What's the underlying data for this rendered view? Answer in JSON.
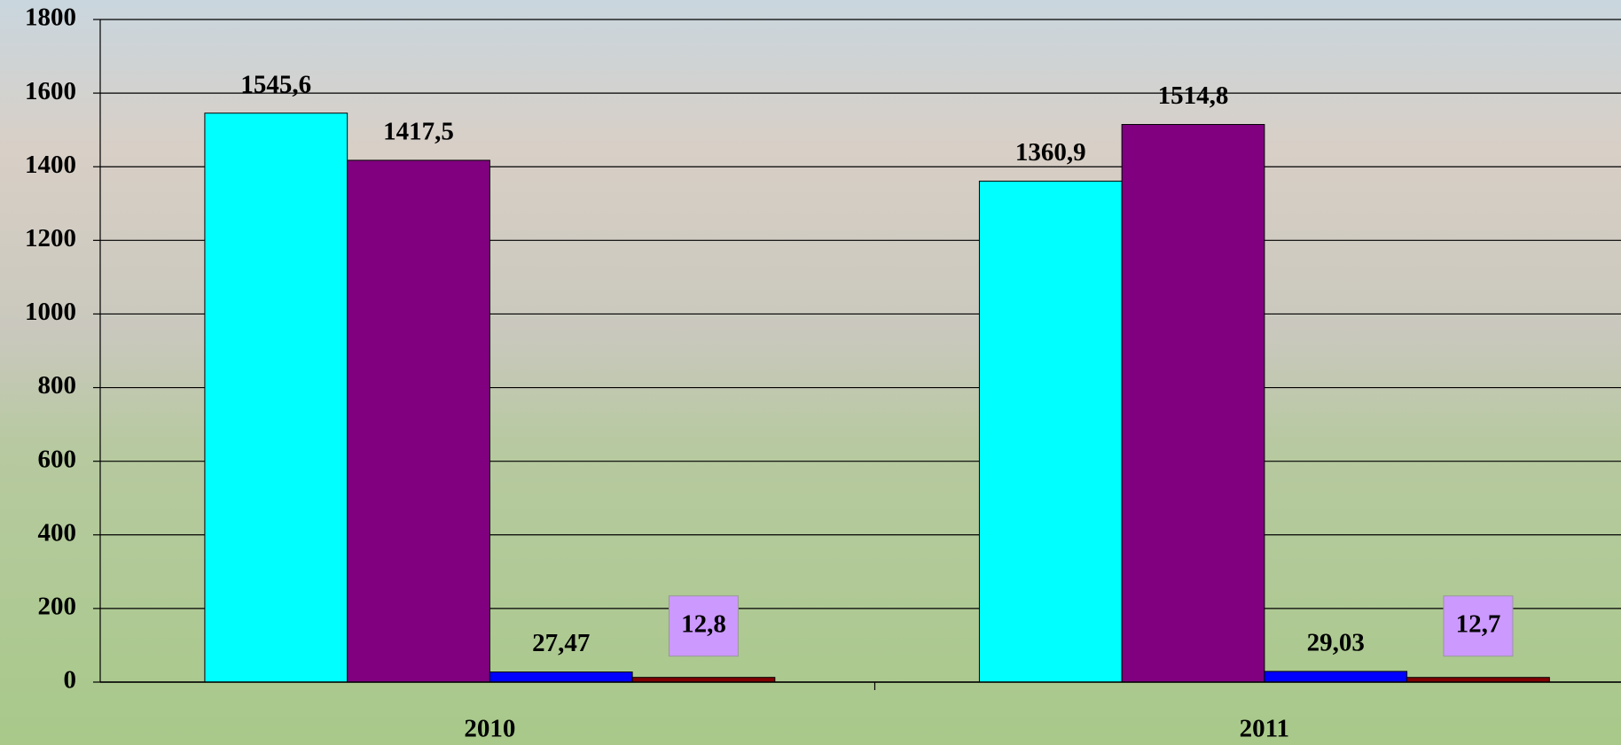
{
  "chart_data": {
    "type": "bar",
    "categories": [
      "2010",
      "2011"
    ],
    "series": [
      {
        "color": "#00ffff",
        "values": [
          1545.6,
          1360.9
        ],
        "value_labels": [
          "1545,6",
          "1360,9"
        ]
      },
      {
        "color": "#800080",
        "values": [
          1417.5,
          1514.8
        ],
        "value_labels": [
          "1417,5",
          "1514,8"
        ]
      },
      {
        "color": "#0000ff",
        "values": [
          27.47,
          29.03
        ],
        "value_labels": [
          "27,47",
          "29,03"
        ]
      },
      {
        "color": "#800000",
        "values": [
          12.8,
          12.7
        ],
        "value_labels": [
          "12,8",
          "12,7"
        ],
        "label_background": "#cc99ff"
      }
    ],
    "ylim": [
      0,
      1800
    ],
    "yticks": [
      0,
      200,
      400,
      600,
      800,
      1000,
      1200,
      1400,
      1600,
      1800
    ],
    "grid": true
  }
}
